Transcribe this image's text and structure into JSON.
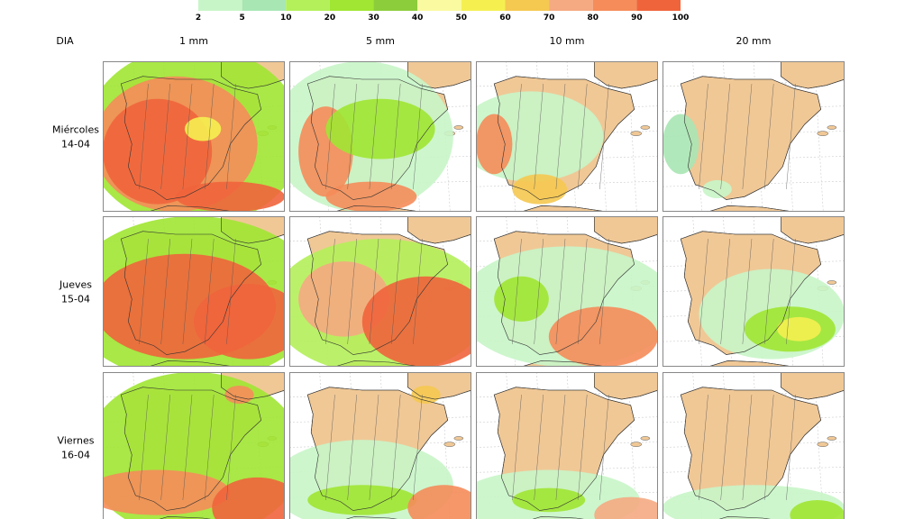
{
  "legend": {
    "labels": [
      "2",
      "5",
      "10",
      "20",
      "30",
      "40",
      "50",
      "60",
      "70",
      "80",
      "90",
      "100"
    ],
    "colors": [
      "#c8f5c8",
      "#a8e6b4",
      "#b4f05a",
      "#a0e632",
      "#8ccd3c",
      "#fafaa0",
      "#f5f050",
      "#f5c850",
      "#f5aa82",
      "#f58c5a",
      "#f0643c"
    ]
  },
  "header": {
    "corner": "DIA",
    "columns": [
      "1 mm",
      "5 mm",
      "10 mm",
      "20 mm"
    ]
  },
  "rows": [
    {
      "day": "Miércoles",
      "date": "14-04"
    },
    {
      "day": "Jueves",
      "date": "15-04"
    },
    {
      "day": "Viernes",
      "date": "16-04"
    }
  ]
}
